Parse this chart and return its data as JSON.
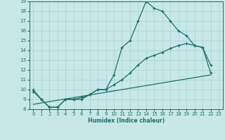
{
  "xlabel": "Humidex (Indice chaleur)",
  "bg_color": "#c8e8e8",
  "grid_color": "#a8d0d0",
  "line_color": "#1a6e6e",
  "xlim": [
    -0.5,
    23.5
  ],
  "ylim": [
    8,
    19
  ],
  "xticks": [
    0,
    1,
    2,
    3,
    4,
    5,
    6,
    7,
    8,
    9,
    10,
    11,
    12,
    13,
    14,
    15,
    16,
    17,
    18,
    19,
    20,
    21,
    22,
    23
  ],
  "yticks": [
    8,
    9,
    10,
    11,
    12,
    13,
    14,
    15,
    16,
    17,
    18,
    19
  ],
  "line1_x": [
    0,
    1,
    2,
    3,
    4,
    5,
    6,
    7,
    8,
    9,
    10,
    11,
    12,
    13,
    14,
    15,
    16,
    17,
    18,
    19,
    20,
    21,
    22
  ],
  "line1_y": [
    10,
    9,
    8.2,
    8.2,
    9.0,
    9.0,
    9.0,
    9.5,
    10,
    10,
    11.5,
    14.3,
    15.0,
    17.0,
    19.0,
    18.3,
    18.0,
    17.0,
    16.0,
    15.5,
    14.5,
    14.3,
    12.5
  ],
  "line2_x": [
    0,
    1,
    2,
    3,
    4,
    5,
    6,
    7,
    8,
    9,
    10,
    11,
    12,
    13,
    14,
    15,
    16,
    17,
    18,
    19,
    20,
    21,
    22
  ],
  "line2_y": [
    9.8,
    9.0,
    8.2,
    8.2,
    9.0,
    9.0,
    9.2,
    9.5,
    10.0,
    10.0,
    10.5,
    11.0,
    11.7,
    12.5,
    13.2,
    13.5,
    13.8,
    14.2,
    14.5,
    14.7,
    14.5,
    14.3,
    11.7
  ],
  "line3_x": [
    0,
    22
  ],
  "line3_y": [
    8.5,
    11.5
  ]
}
